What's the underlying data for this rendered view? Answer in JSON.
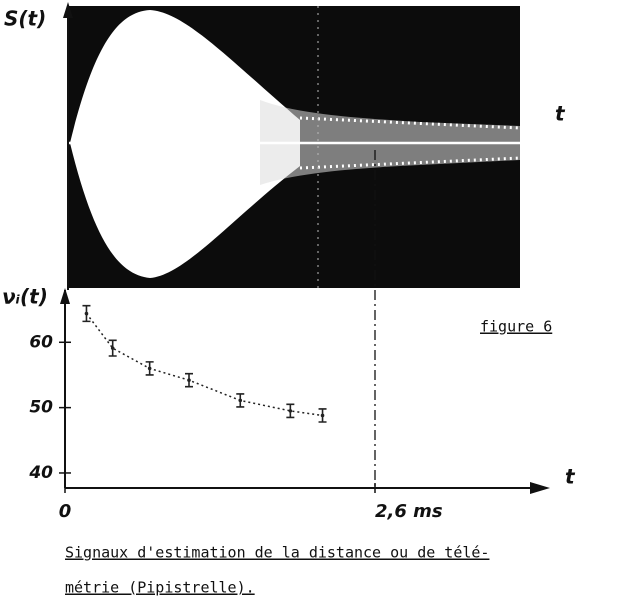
{
  "figure": {
    "top_panel": {
      "y_label": "S(t)",
      "x_label": "t"
    },
    "label": "figure 6",
    "caption": [
      "Signaux d'estimation de la distance ou de télé-",
      "métrie (Pipistrelle)."
    ]
  },
  "chart_data": {
    "type": "scatter",
    "y_label": "νᵢ(t)",
    "x_label": "t",
    "x": [
      0.18,
      0.4,
      0.71,
      1.04,
      1.47,
      1.89,
      2.16
    ],
    "values": [
      64.4,
      59.1,
      56.0,
      54.2,
      51.1,
      49.5,
      48.8
    ],
    "errors": [
      1.2,
      1.2,
      1.0,
      1.0,
      1.0,
      1.0,
      1.0
    ],
    "color": "#222222",
    "xlim": [
      0,
      3.9
    ],
    "xticks": [
      0,
      {
        "value": 2.6,
        "label": "2,6 ms"
      }
    ],
    "ylim": [
      37.7,
      68
    ],
    "yticks": [
      40,
      50,
      60
    ]
  }
}
